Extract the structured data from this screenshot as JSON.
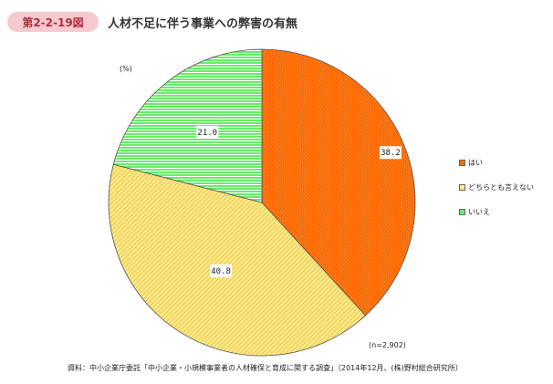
{
  "figure": {
    "number": "第2-2-19図",
    "title": "人材不足に伴う事業への弊害の有無"
  },
  "chart_data": {
    "type": "pie",
    "unit": "(%)",
    "categories": [
      "はい",
      "どちらとも言えない",
      "いいえ"
    ],
    "values": [
      38.2,
      40.8,
      21.0
    ],
    "value_labels": [
      "38.2",
      "40.8",
      "21.0"
    ],
    "colors": [
      "#ff6a00",
      "#fde98a",
      "#66ee66"
    ],
    "stripe_colors": [
      "#ffffff",
      "#e8c94a",
      "#ffffff"
    ],
    "legend_position": "right",
    "sample_note": "(n=2,902)"
  },
  "source_note": "資料：中小企業庁委託「中小企業・小規模事業者の人材確保と育成に関する調査」（2014年12月、(株)野村総合研究所）"
}
